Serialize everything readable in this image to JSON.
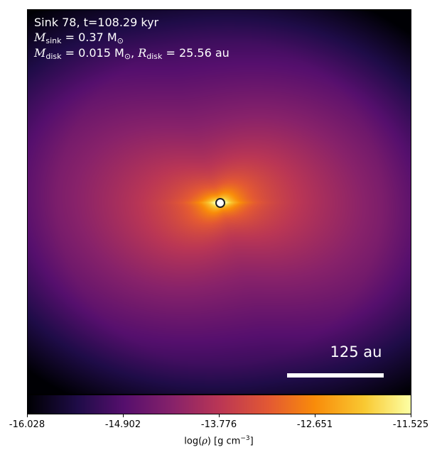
{
  "annotations": {
    "title": "Sink 78, t=108.29 kyr",
    "m_sink_symbol": "M",
    "m_sink_sub": "sink",
    "m_sink_value": " = 0.37 M",
    "m_disk_symbol": "M",
    "m_disk_sub": "disk",
    "m_disk_value": " = 0.015 M",
    "r_disk_symbol": "R",
    "r_disk_sub": "disk",
    "r_disk_value": " = 25.56 au",
    "sun_symbol": "⊙"
  },
  "scale_bar": {
    "label": "125 au"
  },
  "colorbar": {
    "colormap": "inferno",
    "ticks": [
      "-16.028",
      "-14.902",
      "-13.776",
      "-12.651",
      "-11.525"
    ],
    "label_prefix": "log(",
    "label_rho": "ρ",
    "label_suffix": ") [g cm",
    "label_exp": "−3",
    "label_end": "]"
  }
}
